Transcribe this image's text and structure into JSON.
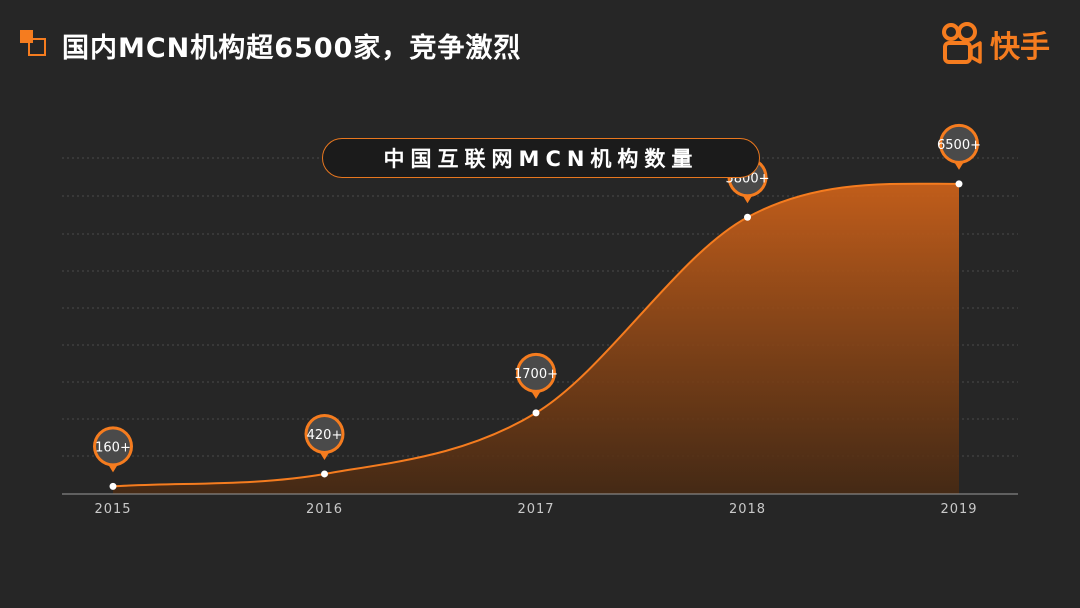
{
  "title": "国内MCN机构超6500家，竞争激烈",
  "brand": {
    "name": "快手",
    "logo_icon": "kuaishou-logo-icon",
    "color": "#f57c1f"
  },
  "chart_data": {
    "type": "area",
    "title": "中国互联网MCN机构数量",
    "x": [
      "2015",
      "2016",
      "2017",
      "2018",
      "2019"
    ],
    "values": [
      160,
      420,
      1700,
      5800,
      6500
    ],
    "data_labels": [
      "160+",
      "420+",
      "1700+",
      "5800+",
      "6500+"
    ],
    "xlabel": "",
    "ylabel": "",
    "ylim": [
      0,
      7000
    ],
    "grid": true,
    "legend": "none",
    "accent_color": "#f57c1f"
  }
}
